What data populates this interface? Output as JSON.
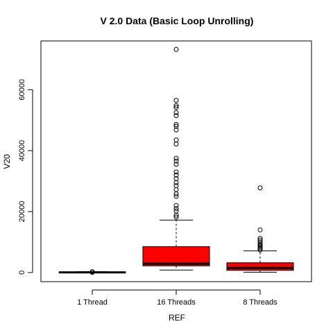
{
  "chart_data": {
    "type": "boxplot",
    "title": "V 2.0 Data (Basic Loop Unrolling)",
    "xlabel": "REF",
    "ylabel": "V20",
    "ylim": [
      -3000,
      76000
    ],
    "y_ticks": [
      0,
      20000,
      40000,
      60000
    ],
    "grid": false,
    "legend": "none",
    "categories": [
      "1 Thread",
      "16 Threads",
      "8 Threads"
    ],
    "boxes": [
      {
        "label": "1 Thread",
        "whisker_low": 0,
        "q1": 0,
        "median": 50,
        "q3": 150,
        "whisker_high": 300,
        "outliers": [
          80,
          120,
          160,
          200,
          250
        ],
        "fill": "#ff0000"
      },
      {
        "label": "16 Threads",
        "whisker_low": 800,
        "q1": 2200,
        "median": 2900,
        "q3": 8500,
        "whisker_high": 17200,
        "outliers": [
          18200,
          18800,
          20200,
          21000,
          22000,
          25000,
          25800,
          27200,
          28500,
          29500,
          30800,
          32000,
          33000,
          35500,
          36600,
          37500,
          42200,
          43500,
          46800,
          48000,
          48600,
          51500,
          52500,
          54200,
          54800,
          56500,
          73200
        ],
        "fill": "#ff0000"
      },
      {
        "label": "8 Threads",
        "whisker_low": 100,
        "q1": 700,
        "median": 1500,
        "q3": 3200,
        "whisker_high": 7100,
        "outliers": [
          7400,
          7800,
          8200,
          8600,
          9000,
          9400,
          10000,
          10600,
          11200,
          14000,
          27800
        ],
        "fill": "#ff0000"
      }
    ]
  }
}
